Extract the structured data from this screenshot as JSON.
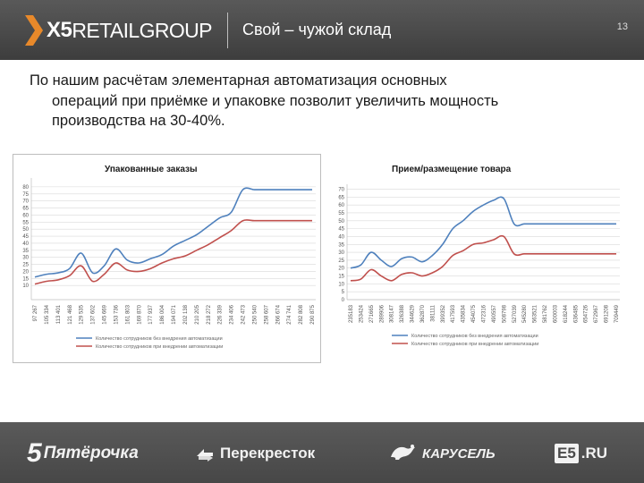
{
  "header": {
    "logo_x5": "X5",
    "logo_retail": "RETAILGROUP",
    "title": "Свой – чужой склад",
    "page_number": "13"
  },
  "body_text": {
    "line1": "По нашим расчётам элементарная автоматизация основных",
    "line2": "операций при приёмке и упаковке позволит увеличить мощность",
    "line3": "производства  на 30-40%."
  },
  "colors": {
    "series_blue": "#4f81bd",
    "series_red": "#c0504d",
    "grid": "#d9d9d9"
  },
  "chart_data": [
    {
      "type": "line",
      "title": "Упакованные заказы",
      "ylim": [
        0,
        85
      ],
      "y_ticks": [
        10,
        15,
        20,
        25,
        30,
        35,
        40,
        45,
        50,
        55,
        60,
        65,
        70,
        75,
        80
      ],
      "x": [
        "97 267",
        "105 334",
        "113 401",
        "121 468",
        "129 535",
        "137 602",
        "145 669",
        "153 736",
        "161 803",
        "169 870",
        "177 937",
        "186 004",
        "194 071",
        "202 138",
        "210 205",
        "218 272",
        "226 339",
        "234 406",
        "242 473",
        "250 540",
        "258 607",
        "266 674",
        "274 741",
        "282 808",
        "290 875"
      ],
      "series": [
        {
          "name": "Количество сотрудников без внедрения автоматизации",
          "values": [
            16,
            18,
            19,
            22,
            33,
            19,
            24,
            36,
            28,
            26,
            29,
            32,
            38,
            42,
            46,
            52,
            58,
            62,
            78,
            78,
            78,
            78,
            78,
            78,
            78
          ]
        },
        {
          "name": "Количество сотрудников при внедрении автоматизации",
          "values": [
            11,
            13,
            14,
            17,
            24,
            13,
            18,
            26,
            21,
            20,
            22,
            26,
            29,
            31,
            35,
            39,
            44,
            49,
            56,
            56,
            56,
            56,
            56,
            56,
            56
          ]
        }
      ],
      "grid": true,
      "legend_position": "bottom"
    },
    {
      "type": "line",
      "title": "Прием/размещение товара",
      "ylim": [
        0,
        72
      ],
      "y_ticks": [
        0,
        5,
        10,
        15,
        20,
        25,
        30,
        35,
        40,
        45,
        50,
        55,
        60,
        65,
        70
      ],
      "x": [
        "235183",
        "253424",
        "271665",
        "289906",
        "308147",
        "326388",
        "344629",
        "362870",
        "381111",
        "399352",
        "417593",
        "435834",
        "454075",
        "472316",
        "490557",
        "508798",
        "527039",
        "545280",
        "563521",
        "581762",
        "600003",
        "618244",
        "636485",
        "654726",
        "672967",
        "691208",
        "709449"
      ],
      "series": [
        {
          "name": "Количество сотрудников без внедрения автоматизации",
          "values": [
            20,
            22,
            30,
            25,
            21,
            26,
            27,
            24,
            28,
            35,
            45,
            50,
            56,
            60,
            63,
            64,
            48,
            48,
            48,
            48,
            48,
            48,
            48,
            48,
            48,
            48,
            48
          ]
        },
        {
          "name": "Количество сотрудников при внедрении автоматизации",
          "values": [
            12,
            13,
            19,
            15,
            12,
            16,
            17,
            15,
            17,
            21,
            28,
            31,
            35,
            36,
            38,
            40,
            29,
            29,
            29,
            29,
            29,
            29,
            29,
            29,
            29,
            29,
            29
          ]
        }
      ],
      "grid": true,
      "legend_position": "bottom"
    }
  ],
  "footer": {
    "brand_5_num": "5",
    "brand_5": "Пятёрочка",
    "brand_perekrestok": "Перекресток",
    "brand_karusel": "КАРУСЕЛЬ",
    "brand_e5_box": "E5",
    "brand_e5_ru": ".RU"
  }
}
